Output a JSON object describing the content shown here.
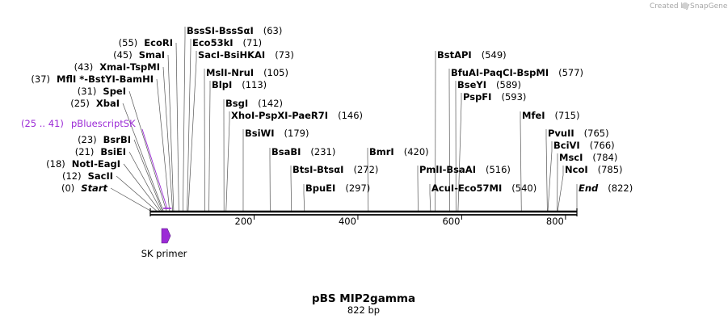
{
  "credit": "Created by",
  "brand": "SnapGene",
  "title": "pBS MIP2gamma",
  "subtitle": "822 bp",
  "sequence_length": 822,
  "axis_ticks": [
    "200",
    "400",
    "600",
    "800"
  ],
  "feature_color": "#9c2bd6",
  "primer": {
    "name": "SK primer",
    "start": 25,
    "end": 41
  },
  "feature_label": {
    "range": "(25 .. 41)",
    "name": "pBluescriptSK"
  },
  "left_labels": [
    {
      "pos": "(55)",
      "names": [
        "EcoRI"
      ]
    },
    {
      "pos": "(45)",
      "names": [
        "SmaI"
      ]
    },
    {
      "pos": "(43)",
      "names": [
        "XmaI",
        "TspMI"
      ]
    },
    {
      "pos": "(37)",
      "names": [
        "MflI *",
        "BstYI",
        "BamHI"
      ]
    },
    {
      "pos": "(31)",
      "names": [
        "SpeI"
      ]
    },
    {
      "pos": "(25)",
      "names": [
        "XbaI"
      ]
    },
    {
      "pos": "(23)",
      "names": [
        "BsrBI"
      ]
    },
    {
      "pos": "(21)",
      "names": [
        "BsiEI"
      ]
    },
    {
      "pos": "(18)",
      "names": [
        "NotI",
        "EagI"
      ]
    },
    {
      "pos": "(12)",
      "names": [
        "SacII"
      ]
    },
    {
      "pos": "(0)",
      "names": [
        "Start"
      ]
    }
  ],
  "right_labels": [
    {
      "names": [
        "BssSI",
        "BssSαI"
      ],
      "pos": "(63)"
    },
    {
      "names": [
        "Eco53kI"
      ],
      "pos": "(71)"
    },
    {
      "names": [
        "SacI",
        "BsiHKAI"
      ],
      "pos": "(73)"
    },
    {
      "names": [
        "MslI",
        "NruI"
      ],
      "pos": "(105)"
    },
    {
      "names": [
        "BlpI"
      ],
      "pos": "(113)"
    },
    {
      "names": [
        "BsgI"
      ],
      "pos": "(142)"
    },
    {
      "names": [
        "XhoI",
        "PspXI",
        "PaeR7I"
      ],
      "pos": "(146)"
    },
    {
      "names": [
        "BsiWI"
      ],
      "pos": "(179)"
    },
    {
      "names": [
        "BsaBI"
      ],
      "pos": "(231)"
    },
    {
      "names": [
        "BtsI",
        "BtsαI"
      ],
      "pos": "(272)"
    },
    {
      "names": [
        "BpuEI"
      ],
      "pos": "(297)"
    },
    {
      "names": [
        "BmrI"
      ],
      "pos": "(420)"
    },
    {
      "names": [
        "PmlI",
        "BsaAI"
      ],
      "pos": "(516)"
    },
    {
      "names": [
        "AcuI",
        "Eco57MI"
      ],
      "pos": "(540)"
    },
    {
      "names": [
        "BstAPI"
      ],
      "pos": "(549)"
    },
    {
      "names": [
        "BfuAI",
        "PaqCI",
        "BspMI"
      ],
      "pos": "(577)"
    },
    {
      "names": [
        "BseYI"
      ],
      "pos": "(589)"
    },
    {
      "names": [
        "PspFI"
      ],
      "pos": "(593)"
    },
    {
      "names": [
        "MfeI"
      ],
      "pos": "(715)"
    },
    {
      "names": [
        "PvuII"
      ],
      "pos": "(765)"
    },
    {
      "names": [
        "BciVI"
      ],
      "pos": "(766)"
    },
    {
      "names": [
        "MscI"
      ],
      "pos": "(784)"
    },
    {
      "names": [
        "NcoI"
      ],
      "pos": "(785)"
    },
    {
      "names": [
        "End"
      ],
      "pos": "(822)"
    }
  ]
}
